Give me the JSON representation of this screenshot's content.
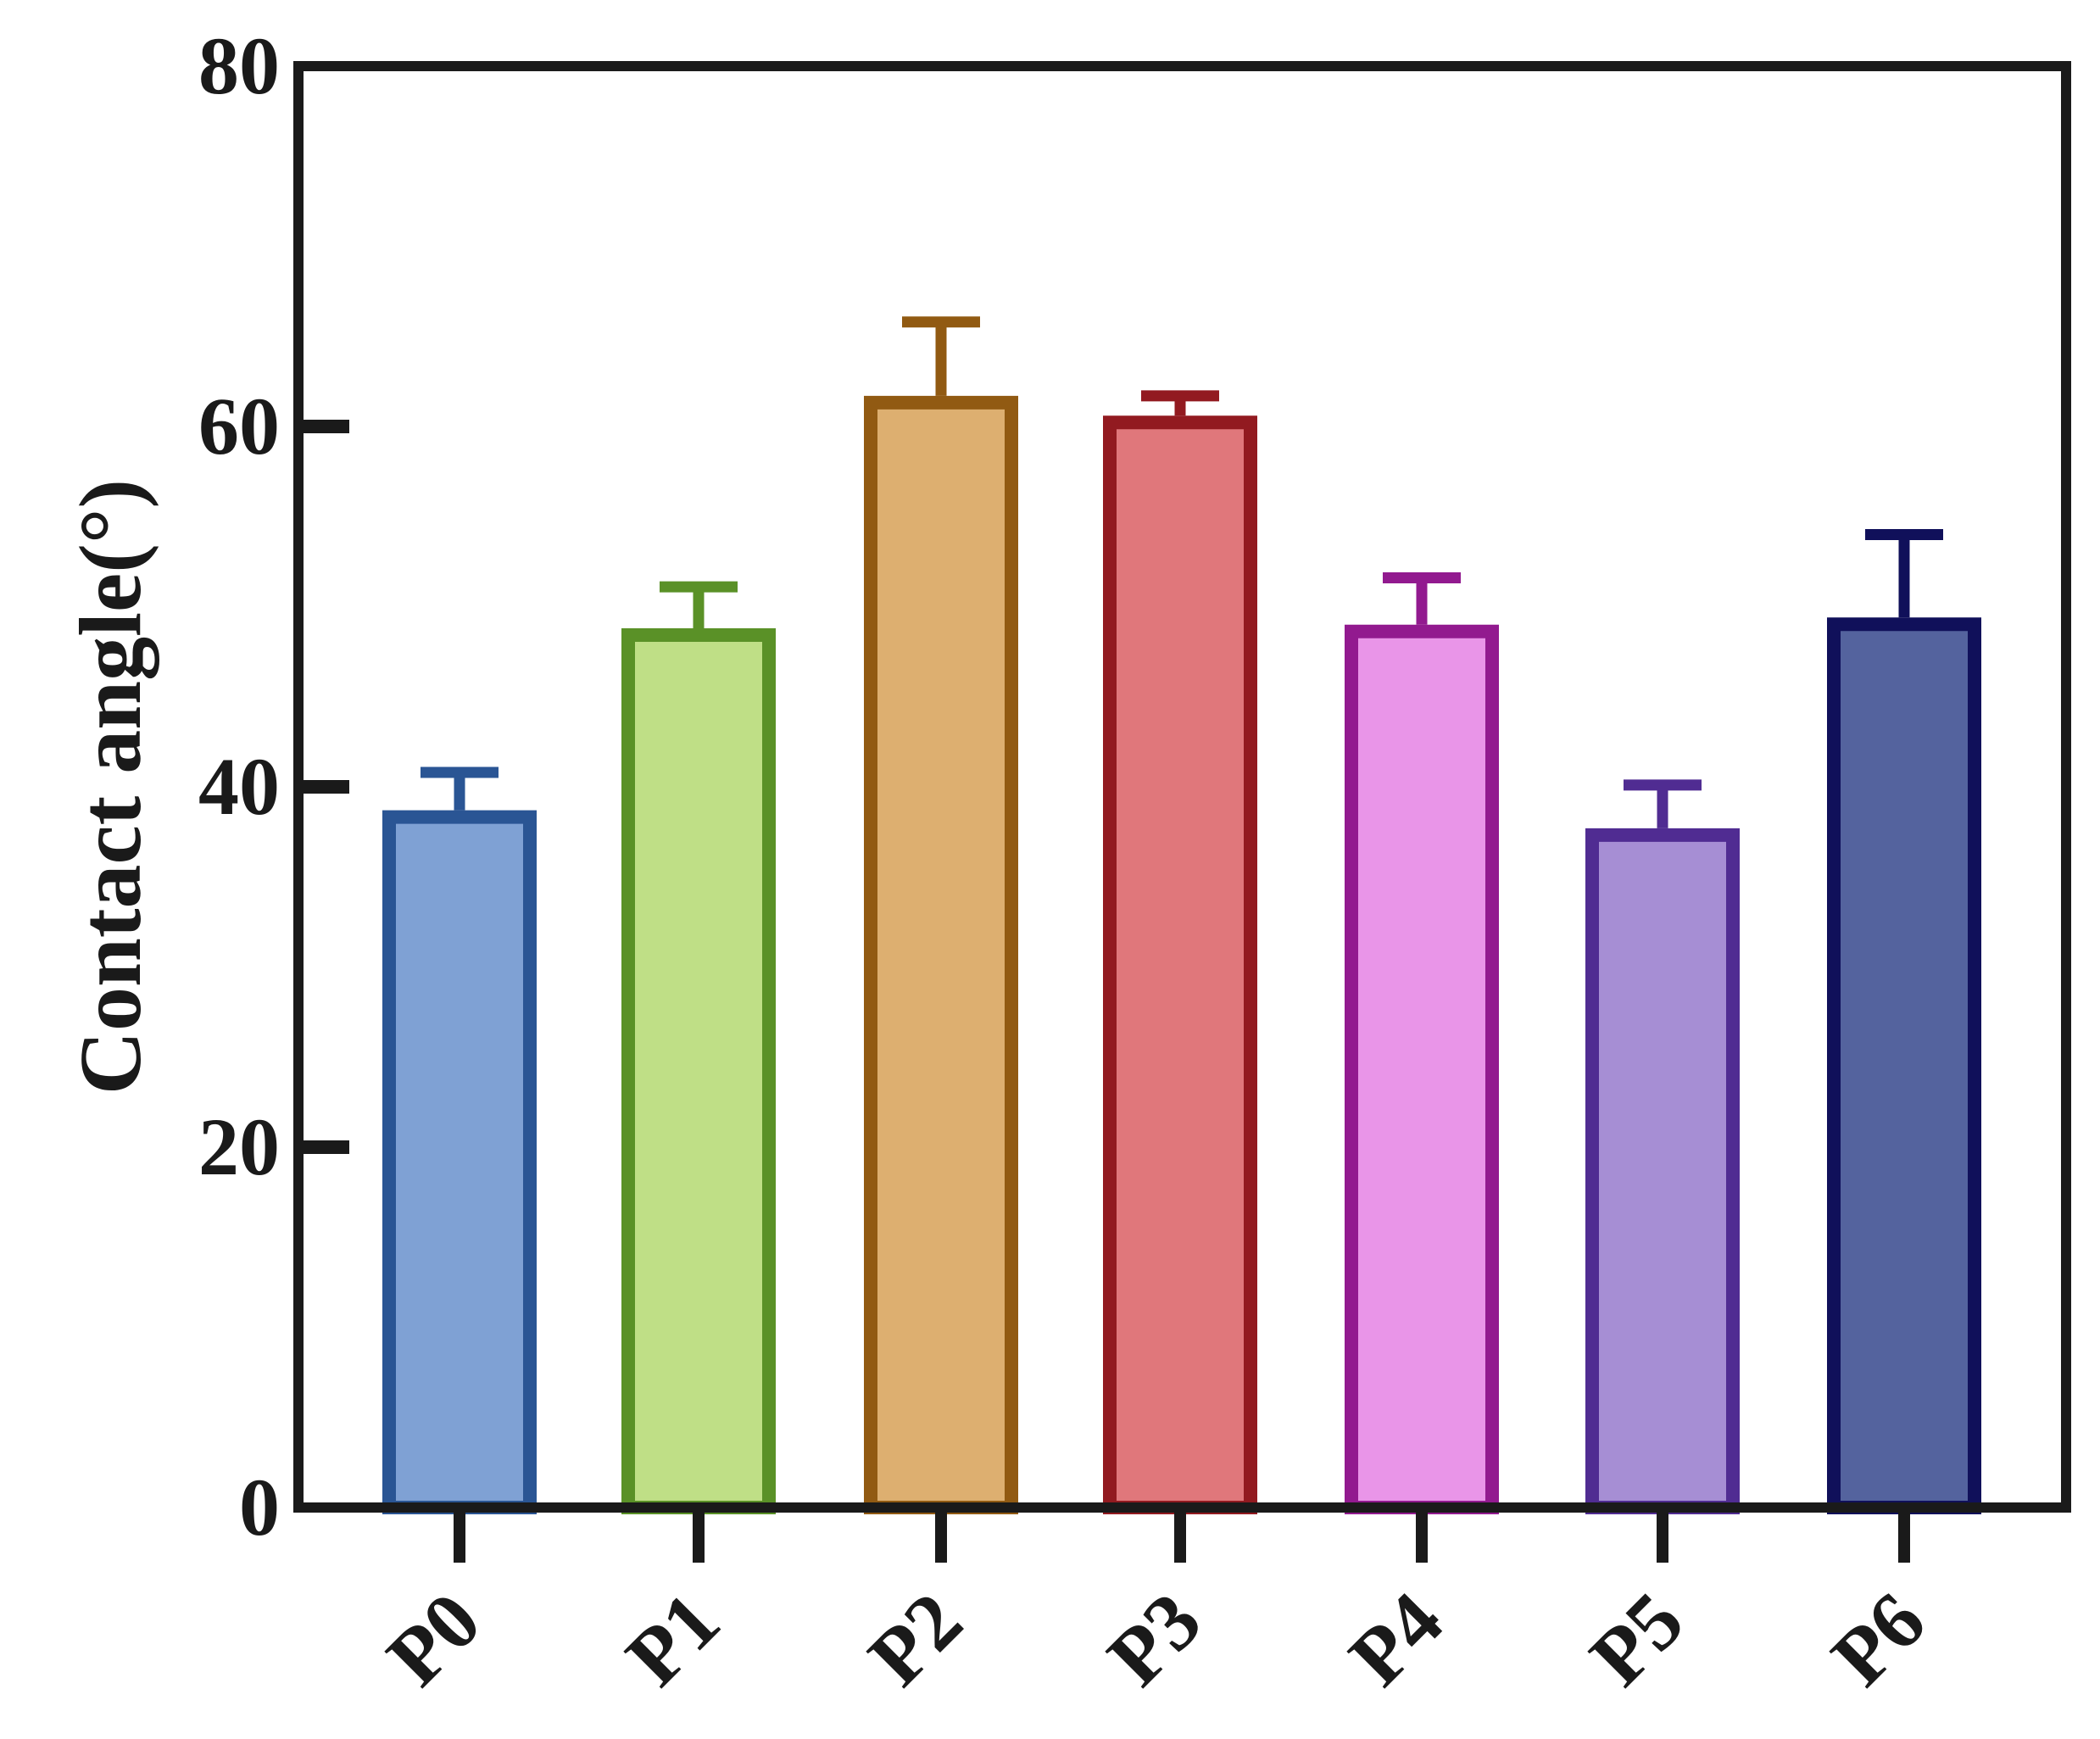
{
  "chart_data": {
    "type": "bar",
    "title": "",
    "xlabel": "",
    "ylabel": "Contact angle(°)",
    "ylim": [
      0,
      80
    ],
    "yticks": [
      0,
      20,
      40,
      60,
      80
    ],
    "grid": false,
    "legend": null,
    "categories": [
      "P0",
      "P1",
      "P2",
      "P3",
      "P4",
      "P5",
      "P6"
    ],
    "values": [
      38.7,
      48.8,
      61.7,
      60.6,
      49.0,
      37.7,
      49.4
    ],
    "error_plus": [
      2.1,
      2.3,
      4.1,
      1.1,
      2.6,
      2.4,
      4.6
    ],
    "fill_colors": [
      "#7fa1d4",
      "#bfdf86",
      "#ddaf70",
      "#e0777b",
      "#e995e8",
      "#a68ed4",
      "#54639e"
    ],
    "edge_colors": [
      "#2a5594",
      "#5a9127",
      "#915a12",
      "#921a20",
      "#921a8f",
      "#502c92",
      "#10105a"
    ]
  },
  "axis": {
    "y_title": "Contact angle(°)",
    "y_tick_labels": [
      "0",
      "20",
      "40",
      "60",
      "80"
    ],
    "x_tick_labels": [
      "P0",
      "P1",
      "P2",
      "P3",
      "P4",
      "P5",
      "P6"
    ]
  }
}
